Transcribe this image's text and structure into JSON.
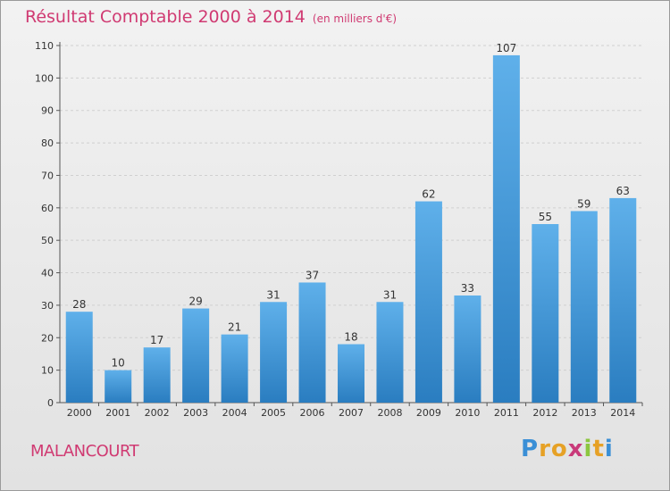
{
  "header": {
    "title": "Résultat Comptable 2000 à 2014",
    "subtitle": "(en milliers d'€)"
  },
  "footer": {
    "commune": "MALANCOURT",
    "brand": "Proxiti"
  },
  "colors": {
    "title": "#d03a72",
    "bar_light": "#5fb0ea",
    "bar_dark": "#2a7dc0"
  },
  "chart_data": {
    "type": "bar",
    "title": "Résultat Comptable 2000 à 2014",
    "subtitle": "(en milliers d'€)",
    "categories": [
      "2000",
      "2001",
      "2002",
      "2003",
      "2004",
      "2005",
      "2006",
      "2007",
      "2008",
      "2009",
      "2010",
      "2011",
      "2012",
      "2013",
      "2014"
    ],
    "values": [
      28,
      10,
      17,
      29,
      21,
      31,
      37,
      18,
      31,
      62,
      33,
      107,
      55,
      59,
      63
    ],
    "ylim": [
      0,
      110
    ],
    "yticks": [
      0,
      10,
      20,
      30,
      40,
      50,
      60,
      70,
      80,
      90,
      100,
      110
    ],
    "grid": true
  }
}
